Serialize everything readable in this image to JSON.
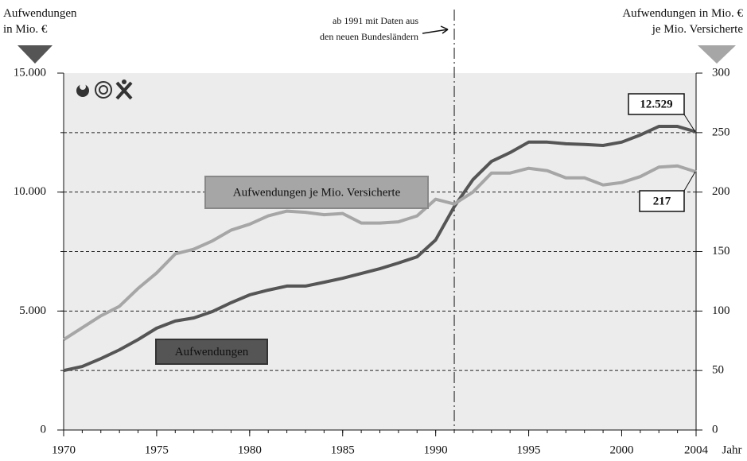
{
  "chart_data": {
    "type": "line",
    "y_axis_label": [
      "Aufwendungen",
      "in Mio. €"
    ],
    "y2_axis_label": [
      "Aufwendungen in Mio. €",
      "je Mio. Versicherte"
    ],
    "x_axis_label": "Jahr",
    "annotation": {
      "x": 1991,
      "lines": [
        "ab 1991 mit Daten aus",
        "den neuen Bundesländern"
      ]
    },
    "x": [
      1970,
      1971,
      1972,
      1973,
      1974,
      1975,
      1976,
      1977,
      1978,
      1979,
      1980,
      1981,
      1982,
      1983,
      1984,
      1985,
      1986,
      1987,
      1988,
      1989,
      1990,
      1991,
      1992,
      1993,
      1994,
      1995,
      1996,
      1997,
      1998,
      1999,
      2000,
      2001,
      2002,
      2003,
      2004
    ],
    "xlim": [
      1970,
      2004
    ],
    "xticks": [
      1970,
      1975,
      1980,
      1985,
      1990,
      1995,
      2000,
      2004
    ],
    "ylim": [
      0,
      15000
    ],
    "yticks": [
      0,
      {
        "value": 5000,
        "label": "5.000"
      },
      {
        "value": 10000,
        "label": "10.000"
      },
      {
        "value": 15000,
        "label": "15.000"
      }
    ],
    "ygrid": [
      2500,
      5000,
      7500,
      10000,
      12500
    ],
    "y2lim": [
      0,
      300
    ],
    "y2ticks": [
      0,
      50,
      100,
      150,
      200,
      250,
      300
    ],
    "series": [
      {
        "name": "Aufwendungen",
        "color": "#555555",
        "values": [
          2500,
          2670,
          3000,
          3370,
          3800,
          4280,
          4580,
          4710,
          4980,
          5350,
          5680,
          5880,
          6050,
          6050,
          6210,
          6380,
          6580,
          6780,
          7020,
          7280,
          7990,
          9390,
          10520,
          11290,
          11660,
          12100,
          12100,
          12030,
          12000,
          11960,
          12100,
          12400,
          12760,
          12760,
          12529
        ],
        "value_labels": [
          null,
          null,
          null,
          null,
          null,
          null,
          null,
          null,
          null,
          null,
          null,
          null,
          null,
          null,
          null,
          null,
          null,
          null,
          null,
          null,
          null,
          null,
          null,
          null,
          null,
          null,
          null,
          null,
          null,
          null,
          null,
          null,
          null,
          null,
          "12.529"
        ]
      },
      {
        "name": "Aufwendungen je Mio. Versicherte",
        "color": "#a6a6a6",
        "axis": "y2",
        "values": [
          76,
          86,
          96,
          104,
          119,
          132,
          148,
          152,
          159,
          168,
          173,
          180,
          184,
          183,
          181,
          182,
          174,
          174,
          175,
          180,
          194,
          190,
          200,
          216,
          216,
          220,
          218,
          212,
          212,
          206,
          208,
          213,
          221,
          222,
          217
        ],
        "value_labels": [
          null,
          null,
          null,
          null,
          null,
          null,
          null,
          null,
          null,
          null,
          null,
          null,
          null,
          null,
          null,
          null,
          null,
          null,
          null,
          null,
          null,
          null,
          null,
          null,
          null,
          null,
          null,
          null,
          null,
          null,
          null,
          null,
          null,
          null,
          "217"
        ]
      }
    ]
  }
}
